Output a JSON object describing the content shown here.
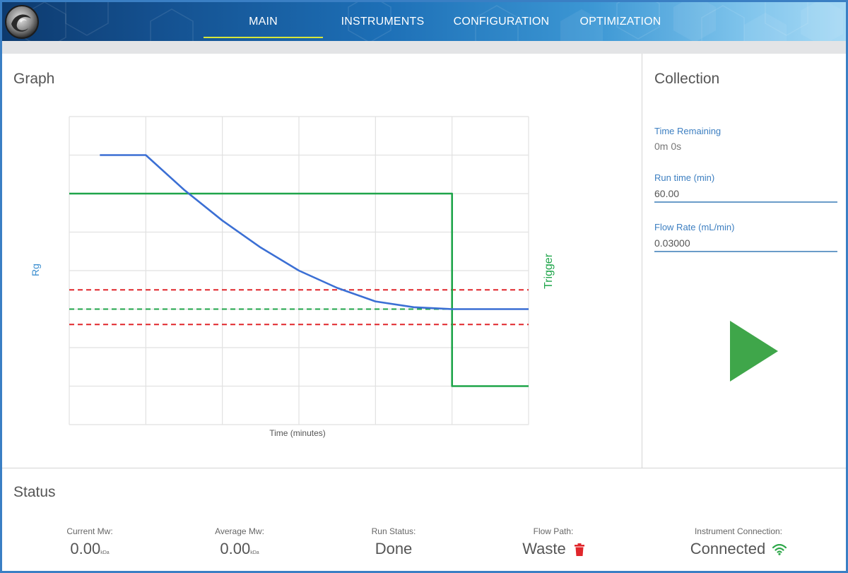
{
  "nav": {
    "tabs": [
      {
        "label": "MAIN",
        "active": true
      },
      {
        "label": "INSTRUMENTS",
        "active": false
      },
      {
        "label": "CONFIGURATION",
        "active": false
      },
      {
        "label": "OPTIMIZATION",
        "active": false
      }
    ]
  },
  "graph": {
    "title": "Graph"
  },
  "chart_data": {
    "type": "line",
    "xlabel": "Time (minutes)",
    "ylabel": "Rg",
    "y2label": "Trigger",
    "grid": true,
    "xlim": [
      0,
      6
    ],
    "ylim": [
      0,
      8
    ],
    "series": [
      {
        "name": "Rg",
        "color": "#3b6fd4",
        "style": "solid",
        "x": [
          0.4,
          1.0,
          1.5,
          2.0,
          2.5,
          3.0,
          3.5,
          4.0,
          4.5,
          5.0,
          5.5,
          6.0
        ],
        "y": [
          7.0,
          7.0,
          6.1,
          5.3,
          4.6,
          4.0,
          3.55,
          3.2,
          3.05,
          3.0,
          3.0,
          3.0
        ]
      },
      {
        "name": "Trigger",
        "color": "#1fa54a",
        "style": "solid",
        "x": [
          0,
          5.0,
          5.0,
          6.0
        ],
        "y": [
          6.0,
          6.0,
          1.0,
          1.0
        ]
      },
      {
        "name": "Threshold upper",
        "color": "#e0262b",
        "style": "dashed",
        "x": [
          0,
          6.0
        ],
        "y": [
          3.5,
          3.5
        ]
      },
      {
        "name": "Threshold target",
        "color": "#1fa54a",
        "style": "dashed",
        "x": [
          0,
          6.0
        ],
        "y": [
          3.0,
          3.0
        ]
      },
      {
        "name": "Threshold lower",
        "color": "#e0262b",
        "style": "dashed",
        "x": [
          0,
          6.0
        ],
        "y": [
          2.6,
          2.6
        ]
      }
    ]
  },
  "collection": {
    "title": "Collection",
    "time_remaining_label": "Time Remaining",
    "time_remaining_value": "0m 0s",
    "run_time_label": "Run time (min)",
    "run_time_value": "60.00",
    "flow_rate_label": "Flow Rate (mL/min)",
    "flow_rate_value": "0.03000",
    "play_icon": "play-icon",
    "play_color": "#3fa64a"
  },
  "status": {
    "title": "Status",
    "current_mw_label": "Current Mw:",
    "current_mw_value": "0.00",
    "current_mw_unit": "kDa",
    "average_mw_label": "Average Mw:",
    "average_mw_value": "0.00",
    "average_mw_unit": "kDa",
    "run_status_label": "Run Status:",
    "run_status_value": "Done",
    "flow_path_label": "Flow Path:",
    "flow_path_value": "Waste",
    "flow_path_icon": "trash-icon",
    "flow_path_icon_color": "#e0262b",
    "connection_label": "Instrument Connection:",
    "connection_value": "Connected",
    "connection_icon": "wifi-icon",
    "connection_icon_color": "#2fa84a"
  }
}
